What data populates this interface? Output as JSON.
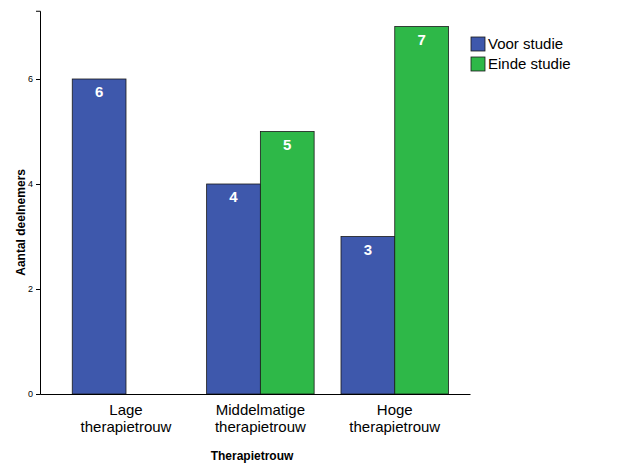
{
  "chart_data": {
    "type": "bar",
    "x_label": "Therapietrouw",
    "y_label": "Aantal deelnemers",
    "categories": [
      "Lage\ntherapietrouw",
      "Middelmatige\ntherapietrouw",
      "Hoge\ntherapietrouw"
    ],
    "series": [
      {
        "name": "Voor studie",
        "color": "#3e58ac",
        "values": [
          6,
          4,
          3
        ]
      },
      {
        "name": "Einde studie",
        "color": "#2eb848",
        "values": [
          null,
          5,
          7
        ]
      }
    ],
    "ylim": [
      0,
      7.3
    ],
    "yticks": [
      0,
      2,
      4,
      6
    ],
    "grid": false,
    "legend": "right",
    "data_labels": true
  }
}
